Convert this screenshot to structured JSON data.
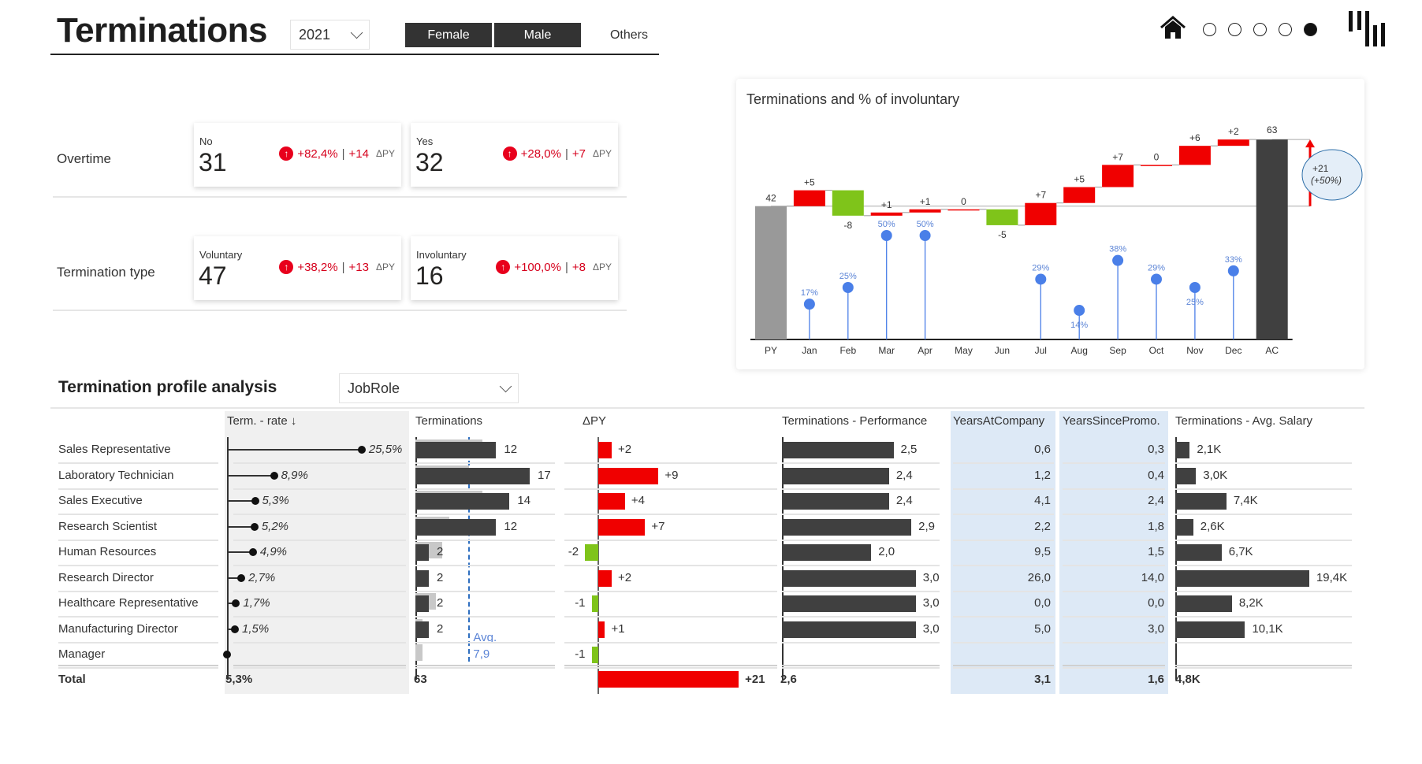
{
  "header": {
    "title": "Terminations",
    "year": "2021",
    "gender_buttons": [
      "Female",
      "Male",
      "Others"
    ],
    "nav_dots_active": 5,
    "nav_dots_total": 5
  },
  "kpis": {
    "delta_suffix": "ΔPY",
    "groups": [
      {
        "label": "Overtime",
        "cards": [
          {
            "label": "No",
            "value": "31",
            "pct": "+82,4%",
            "abs": "+14"
          },
          {
            "label": "Yes",
            "value": "32",
            "pct": "+28,0%",
            "abs": "+7"
          }
        ]
      },
      {
        "label": "Termination type",
        "cards": [
          {
            "label": "Voluntary",
            "value": "47",
            "pct": "+38,2%",
            "abs": "+13"
          },
          {
            "label": "Involuntary",
            "value": "16",
            "pct": "+100,0%",
            "abs": "+8"
          }
        ]
      }
    ]
  },
  "colors": {
    "increase": "#f00000",
    "decrease": "#7fc41a",
    "py_bar": "#999999",
    "ac_bar": "#404040",
    "lollipop": "#4a7fe8",
    "highlight_col": "#dde9f6"
  },
  "chart_data": {
    "type": "waterfall",
    "title": "Terminations and % of involuntary",
    "categories": [
      "PY",
      "Jan",
      "Feb",
      "Mar",
      "Apr",
      "May",
      "Jun",
      "Jul",
      "Aug",
      "Sep",
      "Oct",
      "Nov",
      "Dec",
      "AC"
    ],
    "start": 42,
    "end": 63,
    "deltas": [
      5,
      -8,
      1,
      1,
      0,
      -5,
      7,
      5,
      7,
      0,
      6,
      2
    ],
    "delta_labels": [
      "+5",
      "-8",
      "+1",
      "+1",
      "0",
      "-5",
      "+7",
      "+5",
      "+7",
      "0",
      "+6",
      "+2"
    ],
    "involuntary_pct": [
      17,
      25,
      50,
      50,
      null,
      null,
      29,
      14,
      38,
      29,
      25,
      33
    ],
    "involuntary_labels": [
      "17%",
      "25%",
      "50%",
      "50%",
      "",
      "",
      "29%",
      "14%",
      "38%",
      "29%",
      "25%",
      "33%"
    ],
    "total_change": "+21",
    "total_change_pct": "(+50%)"
  },
  "profile": {
    "title": "Termination profile analysis",
    "dimension": "JobRole",
    "columns": [
      "Term. - rate ↓",
      "Terminations",
      "ΔPY",
      "Terminations - Performance",
      "YearsAtCompany",
      "YearsSincePromo.",
      "Terminations - Avg. Salary"
    ],
    "avg_label": "Avg.",
    "avg_value": 7.9,
    "avg_value_label": "7,9",
    "rows": [
      {
        "role": "Sales Representative",
        "rate": 25.5,
        "rate_label": "25,5%",
        "term": 12,
        "py": 10,
        "delta": 2,
        "delta_label": "+2",
        "perf": 2.5,
        "perf_label": "2,5",
        "yac": "0,6",
        "ysp": "0,3",
        "salary": 2.1,
        "salary_label": "2,1K"
      },
      {
        "role": "Laboratory Technician",
        "rate": 8.9,
        "rate_label": "8,9%",
        "term": 17,
        "py": 8,
        "delta": 9,
        "delta_label": "+9",
        "perf": 2.4,
        "perf_label": "2,4",
        "yac": "1,2",
        "ysp": "0,4",
        "salary": 3.0,
        "salary_label": "3,0K"
      },
      {
        "role": "Sales Executive",
        "rate": 5.3,
        "rate_label": "5,3%",
        "term": 14,
        "py": 10,
        "delta": 4,
        "delta_label": "+4",
        "perf": 2.4,
        "perf_label": "2,4",
        "yac": "4,1",
        "ysp": "2,4",
        "salary": 7.4,
        "salary_label": "7,4K"
      },
      {
        "role": "Research Scientist",
        "rate": 5.2,
        "rate_label": "5,2%",
        "term": 12,
        "py": 5,
        "delta": 7,
        "delta_label": "+7",
        "perf": 2.9,
        "perf_label": "2,9",
        "yac": "2,2",
        "ysp": "1,8",
        "salary": 2.6,
        "salary_label": "2,6K"
      },
      {
        "role": "Human Resources",
        "rate": 4.9,
        "rate_label": "4,9%",
        "term": 2,
        "py": 4,
        "delta": -2,
        "delta_label": "-2",
        "perf": 2.0,
        "perf_label": "2,0",
        "yac": "9,5",
        "ysp": "1,5",
        "salary": 6.7,
        "salary_label": "6,7K"
      },
      {
        "role": "Research Director",
        "rate": 2.7,
        "rate_label": "2,7%",
        "term": 2,
        "py": 0,
        "delta": 2,
        "delta_label": "+2",
        "perf": 3.0,
        "perf_label": "3,0",
        "yac": "26,0",
        "ysp": "14,0",
        "salary": 19.4,
        "salary_label": "19,4K"
      },
      {
        "role": "Healthcare Representative",
        "rate": 1.7,
        "rate_label": "1,7%",
        "term": 2,
        "py": 3,
        "delta": -1,
        "delta_label": "-1",
        "perf": 3.0,
        "perf_label": "3,0",
        "yac": "0,0",
        "ysp": "0,0",
        "salary": 8.2,
        "salary_label": "8,2K"
      },
      {
        "role": "Manufacturing Director",
        "rate": 1.5,
        "rate_label": "1,5%",
        "term": 2,
        "py": 1,
        "delta": 1,
        "delta_label": "+1",
        "perf": 3.0,
        "perf_label": "3,0",
        "yac": "5,0",
        "ysp": "3,0",
        "salary": 10.1,
        "salary_label": "10,1K"
      },
      {
        "role": "Manager",
        "rate": 0,
        "rate_label": "",
        "term": 0,
        "py": 1,
        "delta": -1,
        "delta_label": "-1",
        "perf": null,
        "perf_label": "",
        "yac": "",
        "ysp": "",
        "salary": null,
        "salary_label": ""
      }
    ],
    "total": {
      "label": "Total",
      "rate": "5,3%",
      "term": "63",
      "delta": 21,
      "delta_label": "+21",
      "perf": "2,6",
      "yac": "3,1",
      "ysp": "1,6",
      "salary": "4,8K"
    }
  }
}
